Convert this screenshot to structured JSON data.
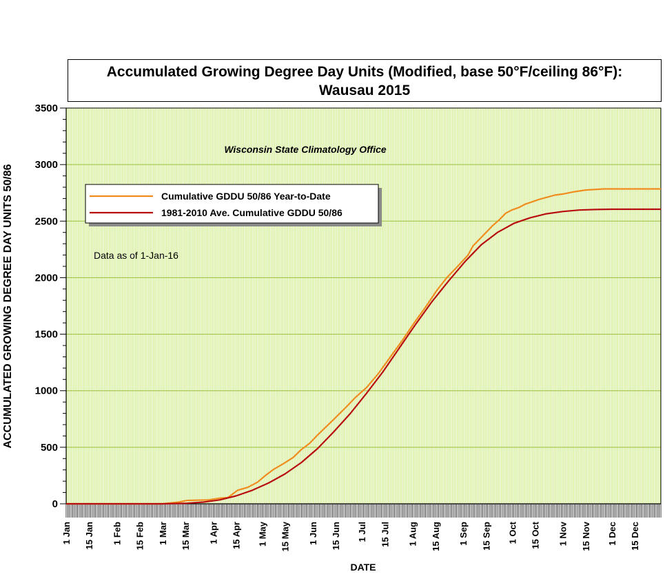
{
  "chart_data": {
    "type": "line",
    "title_line1": "Accumulated Growing Degree Day Units (Modified, base 50°F/ceiling 86°F):",
    "title_line2": "Wausau 2015",
    "source_text": "Wisconsin State Climatology Office",
    "note": "Data as of 1-Jan-16",
    "xlabel": "DATE",
    "ylabel": "ACCUMULATED GROWING DEGREE DAY UNITS 50/86",
    "ylim": [
      0,
      3500
    ],
    "y_ticks": [
      "0",
      "500",
      "1000",
      "1500",
      "2000",
      "2500",
      "3000",
      "3500"
    ],
    "x_tick_labels": [
      {
        "label": "1 Jan",
        "day": 1
      },
      {
        "label": "15 Jan",
        "day": 15
      },
      {
        "label": "1 Feb",
        "day": 32
      },
      {
        "label": "15 Feb",
        "day": 46
      },
      {
        "label": "1 Mar",
        "day": 60
      },
      {
        "label": "15 Mar",
        "day": 74
      },
      {
        "label": "1 Apr",
        "day": 91
      },
      {
        "label": "15 Apr",
        "day": 105
      },
      {
        "label": "1 May",
        "day": 121
      },
      {
        "label": "15 May",
        "day": 135
      },
      {
        "label": "1 Jun",
        "day": 152
      },
      {
        "label": "15 Jun",
        "day": 166
      },
      {
        "label": "1 Jul",
        "day": 182
      },
      {
        "label": "15 Jul",
        "day": 196
      },
      {
        "label": "1 Aug",
        "day": 213
      },
      {
        "label": "15 Aug",
        "day": 227
      },
      {
        "label": "1 Sep",
        "day": 244
      },
      {
        "label": "15 Sep",
        "day": 258
      },
      {
        "label": "1 Oct",
        "day": 274
      },
      {
        "label": "15 Oct",
        "day": 288
      },
      {
        "label": "1 Nov",
        "day": 305
      },
      {
        "label": "15 Nov",
        "day": 319
      },
      {
        "label": "1 Dec",
        "day": 335
      },
      {
        "label": "15 Dec",
        "day": 349
      }
    ],
    "xlim_days": [
      1,
      365
    ],
    "legend_position": "upper-left",
    "grid": true,
    "colors": {
      "plot_bg": "#d6ee9a",
      "grid": "#ffffff",
      "series_ytd": "#f08c1e",
      "series_avg": "#b80d0d"
    },
    "series": [
      {
        "name": "Cumulative GDDU 50/86 Year-to-Date",
        "color": "#f08c1e",
        "x_day": [
          1,
          60,
          70,
          75,
          88,
          95,
          100,
          106,
          112,
          118,
          123,
          128,
          134,
          140,
          145,
          150,
          155,
          160,
          165,
          172,
          178,
          185,
          192,
          200,
          207,
          214,
          221,
          228,
          234,
          240,
          247,
          250,
          254,
          258,
          262,
          266,
          270,
          274,
          278,
          282,
          286,
          290,
          295,
          300,
          305,
          312,
          319,
          330,
          345,
          365
        ],
        "y": [
          0,
          0,
          15,
          30,
          35,
          50,
          55,
          120,
          145,
          190,
          250,
          305,
          355,
          410,
          480,
          535,
          610,
          680,
          750,
          850,
          940,
          1030,
          1150,
          1310,
          1450,
          1600,
          1740,
          1890,
          2000,
          2090,
          2200,
          2280,
          2340,
          2400,
          2460,
          2510,
          2570,
          2600,
          2620,
          2650,
          2670,
          2690,
          2710,
          2730,
          2740,
          2760,
          2775,
          2785,
          2785,
          2785
        ]
      },
      {
        "name": "1981-2010 Ave. Cumulative GDDU 50/86",
        "color": "#b80d0d",
        "x_day": [
          1,
          60,
          75,
          85,
          95,
          105,
          115,
          125,
          135,
          145,
          155,
          165,
          175,
          185,
          195,
          205,
          215,
          225,
          235,
          245,
          255,
          265,
          275,
          285,
          295,
          305,
          315,
          325,
          335,
          345,
          365
        ],
        "y": [
          0,
          0,
          5,
          15,
          35,
          70,
          120,
          185,
          265,
          365,
          490,
          640,
          800,
          980,
          1170,
          1380,
          1590,
          1790,
          1970,
          2140,
          2290,
          2400,
          2480,
          2530,
          2565,
          2585,
          2598,
          2603,
          2605,
          2605,
          2605
        ]
      }
    ]
  }
}
